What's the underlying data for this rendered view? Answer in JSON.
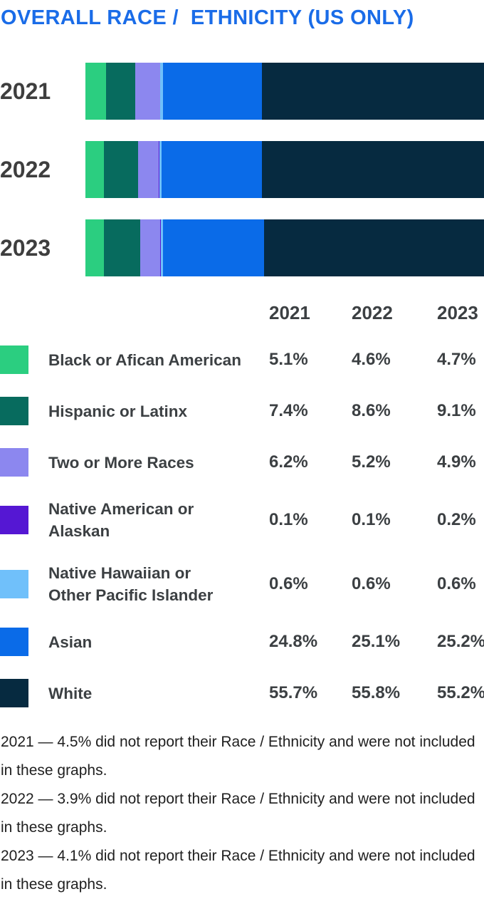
{
  "title": "OVERALL RACE /  ETHNICITY (US ONLY)",
  "accent_color": "#1A6CE8",
  "chart_data": {
    "type": "bar",
    "orientation": "horizontal-stacked",
    "title": "OVERALL RACE /  ETHNICITY (US ONLY)",
    "categories": [
      "2021",
      "2022",
      "2023"
    ],
    "unit": "percent",
    "xlim": [
      0,
      100
    ],
    "legend_position": "bottom-table",
    "series": [
      {
        "name": "Black or Afican American",
        "color": "#2BCE80",
        "values": [
          5.1,
          4.6,
          4.7
        ]
      },
      {
        "name": "Hispanic or Latinx",
        "color": "#076B5E",
        "values": [
          7.4,
          8.6,
          9.1
        ]
      },
      {
        "name": "Two or More Races",
        "color": "#8C87EF",
        "values": [
          6.2,
          5.2,
          4.9
        ]
      },
      {
        "name": "Native American or Alaskan",
        "color": "#5517D3",
        "values": [
          0.1,
          0.1,
          0.2
        ]
      },
      {
        "name": "Native Hawaiian or Other Pacific Islander",
        "color": "#70C0FA",
        "values": [
          0.6,
          0.6,
          0.6
        ]
      },
      {
        "name": "Asian",
        "color": "#0A6BE8",
        "values": [
          24.8,
          25.1,
          25.2
        ]
      },
      {
        "name": "White",
        "color": "#062A40",
        "values": [
          55.7,
          55.8,
          55.2
        ]
      }
    ]
  },
  "table": {
    "year_headers": [
      "2021",
      "2022",
      "2023"
    ],
    "rows": [
      {
        "label": "Black or Afican American",
        "color": "#2BCE80",
        "values": [
          "5.1%",
          "4.6%",
          "4.7%"
        ]
      },
      {
        "label": "Hispanic or Latinx",
        "color": "#076B5E",
        "values": [
          "7.4%",
          "8.6%",
          "9.1%"
        ]
      },
      {
        "label": "Two or More Races",
        "color": "#8C87EF",
        "values": [
          "6.2%",
          "5.2%",
          "4.9%"
        ]
      },
      {
        "label": "Native American or\nAlaskan",
        "color": "#5517D3",
        "values": [
          "0.1%",
          "0.1%",
          "0.2%"
        ]
      },
      {
        "label": "Native Hawaiian or\nOther Pacific Islander",
        "color": "#70C0FA",
        "values": [
          "0.6%",
          "0.6%",
          "0.6%"
        ]
      },
      {
        "label": "Asian",
        "color": "#0A6BE8",
        "values": [
          "24.8%",
          "25.1%",
          "25.2%"
        ]
      },
      {
        "label": "White",
        "color": "#062A40",
        "values": [
          "55.7%",
          "55.8%",
          "55.2%"
        ]
      }
    ]
  },
  "footnotes": [
    "2021 — 4.5% did not report their Race / Ethnicity and were not included in these graphs.",
    "2022 — 3.9% did not report their Race / Ethnicity and were not included in these graphs.",
    "2023 — 4.1% did not report their Race / Ethnicity and were not included in these graphs."
  ]
}
